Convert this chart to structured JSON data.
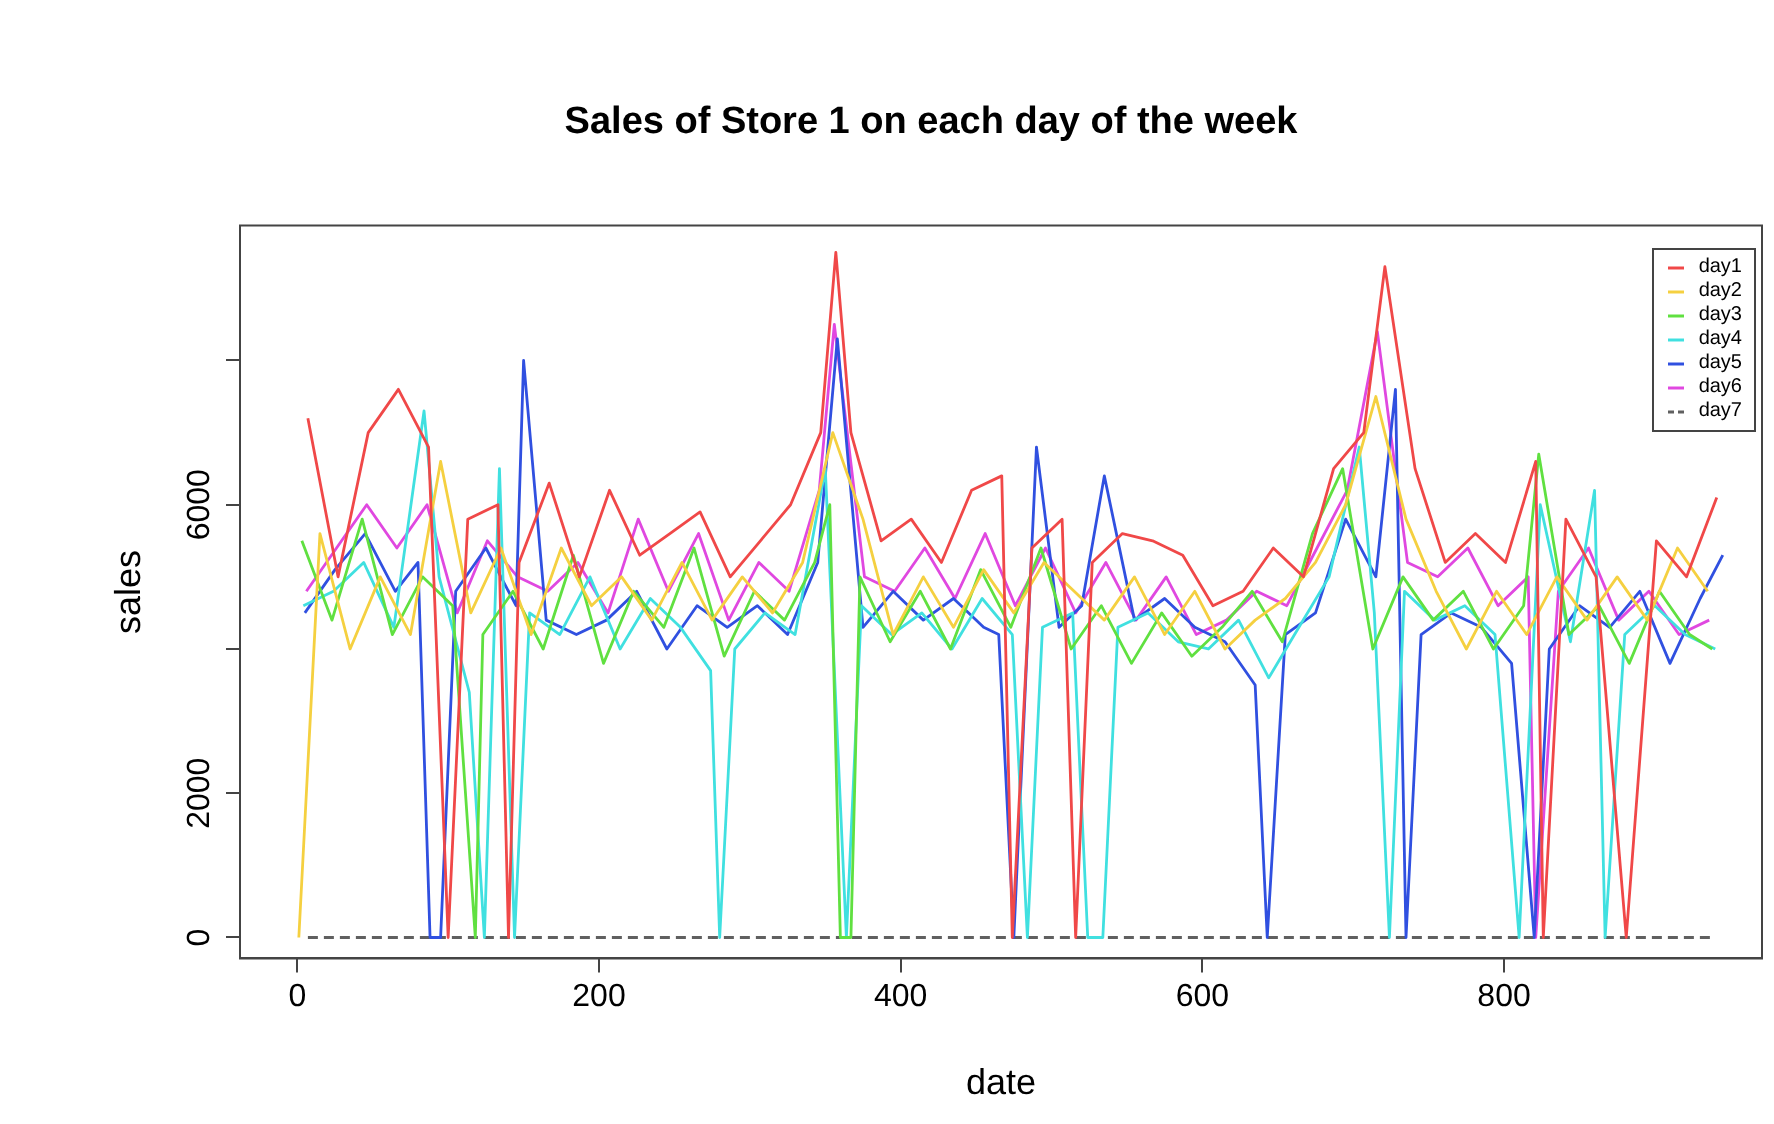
{
  "chart_data": {
    "type": "line",
    "title": "Sales of Store 1 on each day of the week",
    "xlabel": "date",
    "ylabel": "sales",
    "xlim": [
      -38,
      971
    ],
    "xticks": [
      0,
      200,
      400,
      600,
      800
    ],
    "ylim": [
      -290,
      9870
    ],
    "yticks": [
      0,
      2000,
      {
        "value": 4000,
        "label": null
      },
      6000,
      {
        "value": 8000,
        "label": null
      }
    ],
    "grid": false,
    "legend": "top right",
    "marker": "none",
    "line_style": "solid",
    "series": [
      {
        "name": "day1",
        "color": "#f04848",
        "x": [
          7,
          27,
          47,
          67,
          87,
          100,
          113,
          133,
          140,
          147,
          167,
          187,
          207,
          227,
          247,
          267,
          287,
          307,
          327,
          347,
          357,
          367,
          387,
          407,
          427,
          447,
          467,
          474,
          487,
          507,
          516,
          527,
          547,
          567,
          587,
          607,
          627,
          647,
          667,
          687,
          707,
          721,
          741,
          761,
          781,
          801,
          821,
          826,
          841,
          861,
          881,
          901,
          921,
          941
        ],
        "values": [
          7200,
          5000,
          7000,
          7600,
          6800,
          0,
          5800,
          6000,
          0,
          5200,
          6300,
          5000,
          6200,
          5300,
          5600,
          5900,
          5000,
          5500,
          6000,
          7000,
          9500,
          7000,
          5500,
          5800,
          5200,
          6200,
          6400,
          0,
          5400,
          5800,
          0,
          5200,
          5600,
          5500,
          5300,
          4600,
          4800,
          5400,
          5000,
          6500,
          7000,
          9300,
          6500,
          5200,
          5600,
          5200,
          6600,
          0,
          5800,
          5000,
          0,
          5500,
          5000,
          6100
        ]
      },
      {
        "name": "day2",
        "color": "#f5d040",
        "x": [
          1,
          15,
          35,
          55,
          75,
          95,
          115,
          135,
          155,
          175,
          195,
          215,
          235,
          255,
          275,
          295,
          315,
          335,
          355,
          375,
          395,
          415,
          435,
          455,
          475,
          495,
          515,
          535,
          555,
          575,
          595,
          615,
          635,
          655,
          675,
          695,
          715,
          735,
          755,
          775,
          795,
          815,
          835,
          855,
          875,
          895,
          915,
          935
        ],
        "values": [
          0,
          5600,
          4000,
          5000,
          4200,
          6600,
          4500,
          5400,
          4200,
          5400,
          4600,
          5000,
          4400,
          5200,
          4400,
          5000,
          4500,
          5200,
          7000,
          5800,
          4200,
          5000,
          4300,
          5100,
          4500,
          5200,
          4800,
          4400,
          5000,
          4200,
          4800,
          4000,
          4400,
          4700,
          5200,
          6000,
          7500,
          5800,
          4800,
          4000,
          4800,
          4200,
          5000,
          4400,
          5000,
          4400,
          5400,
          4800
        ]
      },
      {
        "name": "day3",
        "color": "#60e040",
        "x": [
          3,
          23,
          43,
          63,
          83,
          103,
          118,
          123,
          143,
          163,
          183,
          203,
          223,
          243,
          263,
          283,
          303,
          323,
          343,
          353,
          360,
          367,
          373,
          393,
          413,
          433,
          453,
          473,
          493,
          513,
          533,
          553,
          573,
          593,
          613,
          633,
          653,
          673,
          693,
          713,
          733,
          753,
          773,
          793,
          813,
          823,
          843,
          863,
          883,
          903,
          923,
          938
        ],
        "values": [
          5500,
          4400,
          5800,
          4200,
          5000,
          4600,
          0,
          4200,
          4800,
          4000,
          5300,
          3800,
          4800,
          4300,
          5400,
          3900,
          4800,
          4400,
          5200,
          6000,
          0,
          0,
          5000,
          4100,
          4800,
          4000,
          5100,
          4300,
          5400,
          4000,
          4600,
          3800,
          4500,
          3900,
          4300,
          4800,
          4100,
          5600,
          6500,
          4000,
          5000,
          4400,
          4800,
          4000,
          4600,
          6700,
          4200,
          4600,
          3800,
          4800,
          4200,
          4000
        ]
      },
      {
        "name": "day4",
        "color": "#40e0e0",
        "x": [
          4,
          24,
          44,
          64,
          84,
          94,
          114,
          124,
          134,
          144,
          154,
          174,
          194,
          214,
          234,
          254,
          274,
          280,
          290,
          310,
          330,
          350,
          364,
          374,
          394,
          414,
          434,
          454,
          474,
          484,
          494,
          514,
          524,
          534,
          544,
          564,
          584,
          604,
          624,
          644,
          664,
          684,
          704,
          714,
          724,
          734,
          754,
          774,
          794,
          810,
          824,
          844,
          860,
          867,
          880,
          900,
          920,
          940
        ],
        "values": [
          4600,
          4800,
          5200,
          4300,
          7300,
          5000,
          3400,
          0,
          6500,
          0,
          4500,
          4200,
          5000,
          4000,
          4700,
          4300,
          3700,
          0,
          4000,
          4500,
          4200,
          6500,
          0,
          4600,
          4200,
          4500,
          4000,
          4700,
          4200,
          0,
          4300,
          4500,
          0,
          0,
          4300,
          4500,
          4100,
          4000,
          4400,
          3600,
          4300,
          5000,
          6800,
          4500,
          0,
          4800,
          4400,
          4600,
          4200,
          0,
          6000,
          4100,
          6200,
          0,
          4200,
          4600,
          4200,
          4000
        ]
      },
      {
        "name": "day5",
        "color": "#3050e0",
        "x": [
          5,
          25,
          45,
          65,
          80,
          88,
          95,
          105,
          125,
          145,
          150,
          165,
          185,
          205,
          225,
          245,
          265,
          285,
          305,
          325,
          345,
          358,
          375,
          395,
          415,
          435,
          455,
          465,
          475,
          490,
          505,
          520,
          535,
          555,
          575,
          595,
          615,
          635,
          643,
          655,
          675,
          695,
          715,
          728,
          735,
          745,
          765,
          785,
          805,
          820,
          830,
          850,
          870,
          890,
          910,
          930,
          945
        ],
        "values": [
          4500,
          5100,
          5600,
          4800,
          5200,
          0,
          0,
          4800,
          5400,
          4600,
          8000,
          4400,
          4200,
          4400,
          4800,
          4000,
          4600,
          4300,
          4600,
          4200,
          5200,
          8300,
          4300,
          4800,
          4400,
          4700,
          4300,
          4200,
          0,
          6800,
          4300,
          4600,
          6400,
          4400,
          4700,
          4300,
          4100,
          3500,
          0,
          4200,
          4500,
          5800,
          5000,
          7600,
          0,
          4200,
          4500,
          4300,
          3800,
          0,
          4000,
          4600,
          4300,
          4800,
          3800,
          4700,
          5300
        ]
      },
      {
        "name": "day6",
        "color": "#e048e0",
        "x": [
          6,
          26,
          46,
          66,
          86,
          106,
          126,
          146,
          166,
          186,
          206,
          226,
          246,
          266,
          286,
          306,
          326,
          346,
          356,
          376,
          396,
          416,
          436,
          456,
          476,
          496,
          516,
          536,
          556,
          576,
          596,
          616,
          636,
          656,
          676,
          696,
          716,
          736,
          756,
          776,
          796,
          816,
          821,
          836,
          856,
          876,
          896,
          916,
          936
        ],
        "values": [
          4800,
          5400,
          6000,
          5400,
          6000,
          4500,
          5500,
          5000,
          4800,
          5200,
          4500,
          5800,
          4800,
          5600,
          4400,
          5200,
          4800,
          6200,
          8500,
          5000,
          4800,
          5400,
          4700,
          5600,
          4600,
          5400,
          4500,
          5200,
          4400,
          5000,
          4200,
          4400,
          4800,
          4600,
          5400,
          6200,
          8400,
          5200,
          5000,
          5400,
          4600,
          5000,
          0,
          4800,
          5400,
          4400,
          4800,
          4200,
          4400
        ]
      },
      {
        "name": "day7",
        "color": "#606060",
        "line_style": "dashed",
        "x": [
          7,
          938
        ],
        "values": [
          0,
          0
        ]
      }
    ]
  }
}
